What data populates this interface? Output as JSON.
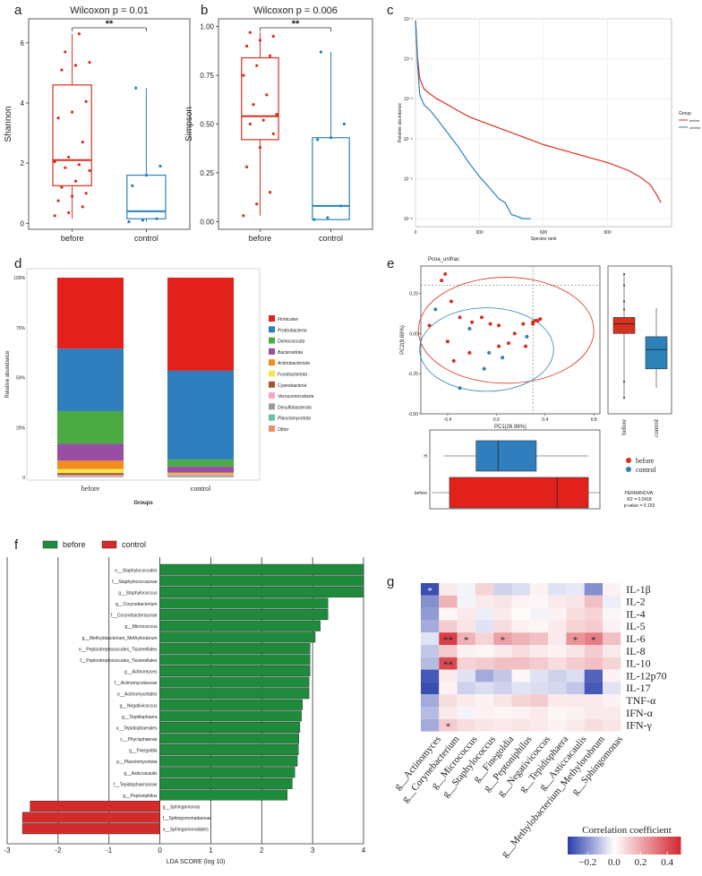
{
  "panel_letters": [
    "a",
    "b",
    "c",
    "d",
    "e",
    "f",
    "g"
  ],
  "chart_data": [
    {
      "id": "a",
      "type": "box",
      "title": "Wilcoxon   p = 0.01",
      "sig": "**",
      "ylabel": "Shannon",
      "ylim": [
        -0.2,
        6.8
      ],
      "yticks": [
        0,
        2,
        4,
        6
      ],
      "categories": [
        "before",
        "control"
      ],
      "colors": [
        "#d7301f",
        "#2b83ba"
      ],
      "boxes": [
        {
          "min": 0.15,
          "q1": 1.25,
          "median": 2.1,
          "q3": 4.6,
          "max": 6.3
        },
        {
          "min": 0.05,
          "q1": 0.15,
          "median": 0.4,
          "q3": 1.6,
          "max": 4.5
        }
      ],
      "points": [
        [
          0.25,
          0.35,
          0.55,
          0.75,
          0.9,
          1.0,
          1.2,
          1.4,
          1.75,
          1.85,
          1.95,
          2.05,
          2.2,
          2.7,
          3.5,
          3.7,
          4.05,
          5.1,
          5.25,
          5.35,
          5.7,
          6.3
        ],
        [
          0.05,
          0.1,
          0.15,
          1.25,
          1.6,
          1.9,
          4.5
        ]
      ]
    },
    {
      "id": "b",
      "type": "box",
      "title": "Wilcoxon   p = 0.006",
      "sig": "**",
      "ylabel": "Simpson",
      "ylim": [
        -0.04,
        1.04
      ],
      "yticks": [
        0.0,
        0.25,
        0.5,
        0.75,
        1.0
      ],
      "yticklabels": [
        "0.00",
        "0.25",
        "0.50",
        "0.75",
        "1.00"
      ],
      "categories": [
        "before",
        "control"
      ],
      "colors": [
        "#d7301f",
        "#2b83ba"
      ],
      "boxes": [
        {
          "min": 0.03,
          "q1": 0.42,
          "median": 0.54,
          "q3": 0.84,
          "max": 0.97
        },
        {
          "min": 0.01,
          "q1": 0.01,
          "median": 0.08,
          "q3": 0.43,
          "max": 0.87
        }
      ],
      "points": [
        [
          0.03,
          0.09,
          0.15,
          0.28,
          0.38,
          0.45,
          0.5,
          0.52,
          0.55,
          0.6,
          0.65,
          0.75,
          0.8,
          0.85,
          0.9,
          0.93,
          0.95,
          0.97
        ],
        [
          0.01,
          0.02,
          0.08,
          0.42,
          0.43,
          0.5,
          0.87
        ]
      ]
    },
    {
      "id": "c",
      "type": "line",
      "ylabel": "Relative abundance",
      "xlabel": "Species rank",
      "xlim": [
        0,
        1200
      ],
      "ylim": [
        -6.2,
        -1
      ],
      "xticks": [
        0,
        300,
        600,
        900
      ],
      "yticks": [
        -6,
        -5,
        -4,
        -3,
        -2,
        -1
      ],
      "yticklabels": [
        "10⁻⁶",
        "10⁻⁵",
        "10⁻⁴",
        "10⁻³",
        "10⁻²",
        "10⁻¹"
      ],
      "legend_title": "Group",
      "series": [
        {
          "name": "before",
          "color": "#d7301f",
          "x": [
            1,
            5,
            10,
            20,
            40,
            60,
            100,
            150,
            200,
            250,
            300,
            400,
            500,
            600,
            700,
            800,
            900,
            1000,
            1050,
            1100,
            1130,
            1150
          ],
          "y": [
            -1.05,
            -1.5,
            -2.0,
            -2.5,
            -2.75,
            -2.85,
            -3.0,
            -3.15,
            -3.3,
            -3.45,
            -3.55,
            -3.75,
            -3.95,
            -4.15,
            -4.3,
            -4.45,
            -4.6,
            -4.8,
            -4.95,
            -5.15,
            -5.4,
            -5.6
          ]
        },
        {
          "name": "control",
          "color": "#2b83ba",
          "x": [
            1,
            5,
            10,
            20,
            40,
            70,
            100,
            150,
            200,
            250,
            300,
            350,
            390,
            420,
            440,
            450,
            480,
            500,
            540
          ],
          "y": [
            -1.05,
            -1.6,
            -2.2,
            -2.9,
            -3.15,
            -3.3,
            -3.5,
            -3.85,
            -4.2,
            -4.6,
            -4.95,
            -5.25,
            -5.5,
            -5.6,
            -5.8,
            -5.9,
            -5.95,
            -6.0,
            -6.0
          ]
        }
      ]
    },
    {
      "id": "d",
      "type": "bar",
      "stacked": true,
      "ylabel": "Relative abundance",
      "xlabel": "Groups",
      "categories": [
        "before",
        "control"
      ],
      "yticks": [
        0,
        25,
        50,
        75,
        100
      ],
      "yticklabels": [
        "0",
        "25%",
        "50%",
        "75%",
        "100%"
      ],
      "series": [
        {
          "name": "Firmicutes",
          "color": "#e3211c",
          "values": [
            35.5,
            46.6
          ]
        },
        {
          "name": "Proteobacteria",
          "color": "#2f7ebd",
          "values": [
            31.3,
            44.4
          ]
        },
        {
          "name": "Deinococcota",
          "color": "#4aab45",
          "values": [
            16.4,
            3.5
          ]
        },
        {
          "name": "Bacteroidota",
          "color": "#984ea3",
          "values": [
            8.4,
            3.0
          ]
        },
        {
          "name": "Actinobacteriota",
          "color": "#f28c1e",
          "values": [
            4.2,
            0.5
          ]
        },
        {
          "name": "Fusobacteriota",
          "color": "#f5e74b",
          "values": [
            2.0,
            0.3
          ]
        },
        {
          "name": "Cyanobacteria",
          "color": "#a65628",
          "values": [
            1.0,
            0.2
          ]
        },
        {
          "name": "Verrucomicrobiota",
          "color": "#f4a6cb",
          "values": [
            0.6,
            0.6
          ]
        },
        {
          "name": "Desulfobacterota",
          "color": "#9b9b9b",
          "values": [
            0.3,
            0.4
          ]
        },
        {
          "name": "Planctomycetota",
          "color": "#66c2a5",
          "values": [
            0.2,
            0.3
          ]
        },
        {
          "name": "Other",
          "color": "#f08c6d",
          "values": [
            0.1,
            0.2
          ]
        }
      ]
    },
    {
      "id": "e",
      "type": "scatter",
      "title": "Pcoa_unifrac",
      "xlabel": "PC1(26.98%)",
      "ylabel": "PC2(8.69%)",
      "xlim": [
        -0.62,
        0.85
      ],
      "ylim": [
        -0.5,
        0.42
      ],
      "xticks": [
        -0.4,
        0.0,
        0.4,
        0.8
      ],
      "xticklabels": [
        "-0.4",
        "0.0",
        "0.4",
        "0.8"
      ],
      "yticks": [
        -0.5,
        -0.25,
        0.0,
        0.25
      ],
      "yticklabels": [
        "-0.50",
        "-0.25",
        "0.00",
        "0.25"
      ],
      "series": [
        {
          "name": "before",
          "color": "#d7301f",
          "points": [
            [
              -0.42,
              0.37
            ],
            [
              -0.45,
              0.33
            ],
            [
              -0.37,
              0.2
            ],
            [
              -0.55,
              0.05
            ],
            [
              -0.3,
              0.1
            ],
            [
              -0.2,
              0.07
            ],
            [
              -0.12,
              0.1
            ],
            [
              -0.05,
              0.06
            ],
            [
              0.02,
              0.05
            ],
            [
              0.15,
              0.0
            ],
            [
              0.22,
              0.06
            ],
            [
              0.3,
              0.07
            ],
            [
              0.32,
              0.08
            ],
            [
              0.34,
              0.08
            ],
            [
              0.36,
              0.09
            ],
            [
              0.1,
              -0.06
            ],
            [
              -0.4,
              -0.05
            ],
            [
              -0.22,
              -0.12
            ],
            [
              -0.35,
              -0.17
            ],
            [
              0.02,
              -0.08
            ],
            [
              0.24,
              -0.08
            ],
            [
              0.3,
              0.06
            ]
          ]
        },
        {
          "name": "control",
          "color": "#2b83ba",
          "points": [
            [
              -0.5,
              0.15
            ],
            [
              -0.22,
              0.03
            ],
            [
              -0.06,
              -0.12
            ],
            [
              0.05,
              -0.15
            ],
            [
              -0.1,
              -0.22
            ],
            [
              -0.3,
              -0.34
            ],
            [
              0.25,
              -0.02
            ]
          ]
        }
      ],
      "legend": [
        "before",
        "control"
      ],
      "permanova": [
        "PERMANOVA:",
        "R2 = 0.0418",
        "p-value = 0.153"
      ],
      "box_right": {
        "categories": [
          "before",
          "control"
        ],
        "boxes": [
          {
            "min": -0.4,
            "q1": 0.0,
            "median": 0.06,
            "q3": 0.1,
            "max": 0.37
          },
          {
            "min": -0.34,
            "q1": -0.22,
            "median": -0.1,
            "q3": -0.02,
            "max": 0.16
          }
        ],
        "outliers": [
          [
            0.37,
            0.3,
            -0.3,
            -0.4,
            0.2,
            0.15
          ],
          []
        ]
      },
      "box_bottom": {
        "categories": [
          "H",
          "before"
        ],
        "boxes": [
          {
            "min": -0.5,
            "q1": -0.22,
            "median": -0.03,
            "q3": 0.3,
            "max": 0.75
          },
          {
            "min": -0.6,
            "q1": -0.45,
            "median": 0.48,
            "q3": 0.75,
            "max": 0.85
          }
        ]
      }
    },
    {
      "id": "f",
      "type": "bar",
      "orientation": "horizontal",
      "xlabel": "LDA SCORE (log 10)",
      "xlim": [
        -3,
        4
      ],
      "xticks": [
        -3,
        -2,
        -1,
        0,
        1,
        2,
        3,
        4
      ],
      "legend": [
        {
          "name": "before",
          "color": "#1e8a3c"
        },
        {
          "name": "control",
          "color": "#d42a2a"
        }
      ],
      "categories": [
        "o__Staphylococcales",
        "f__Staphylococcaceae",
        "g__Staphylococcus",
        "g__Corynebacterium",
        "f__Corynebacteriaceae",
        "g__Micrococcus",
        "g__Methylobacterium_Methylorubrum",
        "o__Peptostreptococcales_Tissierellales",
        "f__Peptostreptococcales_Tissierellales",
        "g__Actinomyces",
        "f__Actinomycetaceae",
        "o__Actinomycetales",
        "g__Negativicoccus",
        "g__Tepidisphaera",
        "o__Tepidisphaerales",
        "c__Phycisphaerae",
        "g__Finegoldia",
        "p__Planctomycetota",
        "g__Asticcacaulis",
        "f__Tepidisphaeraceae",
        "g__Peptoniphilus",
        "g__Sphingomonas",
        "f__Sphingomonadaceae",
        "o__Sphingomonadales"
      ],
      "values": [
        4.0,
        4.0,
        4.0,
        3.3,
        3.3,
        3.15,
        3.05,
        2.95,
        2.95,
        2.95,
        2.93,
        2.93,
        2.8,
        2.78,
        2.75,
        2.73,
        2.72,
        2.7,
        2.65,
        2.6,
        2.5,
        -2.55,
        -2.7,
        -2.7
      ],
      "groups": [
        "before",
        "before",
        "before",
        "before",
        "before",
        "before",
        "before",
        "before",
        "before",
        "before",
        "before",
        "before",
        "before",
        "before",
        "before",
        "before",
        "before",
        "before",
        "before",
        "before",
        "before",
        "control",
        "control",
        "control"
      ]
    },
    {
      "id": "g",
      "type": "heatmap",
      "rows": [
        "IL-1β",
        "IL-2",
        "IL-4",
        "IL-5",
        "IL-6",
        "IL-8",
        "IL-10",
        "IL-12p70",
        "IL-17",
        "TNF-α",
        "IFN-α",
        "IFN-γ"
      ],
      "cols": [
        "g__Actinomyces",
        "g__Corynebacterium",
        "g__Micrococcus",
        "g__Staphylococcus",
        "g__Finegoldia",
        "g__Peptoniphilus",
        "g__Negativicoccus",
        "g__Tepidisphaera",
        "g__Asticcacaulis",
        "g__Methylobacterium_Methylorubrum",
        "g__Sphingomonas"
      ],
      "values": [
        [
          -0.32,
          0.05,
          -0.02,
          0.1,
          -0.08,
          -0.06,
          0.03,
          -0.05,
          -0.04,
          -0.2,
          0.03
        ],
        [
          -0.2,
          0.18,
          -0.02,
          0.05,
          0.06,
          0.03,
          0.02,
          0.05,
          0.06,
          0.15,
          -0.03
        ],
        [
          -0.18,
          0.02,
          0.05,
          -0.03,
          0.05,
          0.01,
          -0.02,
          0.03,
          0.08,
          0.1,
          0.02
        ],
        [
          -0.15,
          0.12,
          0.06,
          -0.05,
          0.08,
          0.03,
          0.02,
          0.05,
          0.1,
          0.12,
          0.03
        ],
        [
          -0.05,
          0.45,
          0.18,
          0.1,
          0.22,
          0.18,
          0.15,
          0.05,
          0.25,
          0.3,
          0.15
        ],
        [
          -0.1,
          0.12,
          0.03,
          0.02,
          0.05,
          0.08,
          0.05,
          0.03,
          0.06,
          0.12,
          0.05
        ],
        [
          -0.12,
          0.42,
          0.1,
          0.12,
          0.15,
          0.15,
          0.12,
          0.08,
          0.12,
          0.15,
          0.1
        ],
        [
          -0.3,
          0.05,
          -0.05,
          -0.15,
          -0.1,
          0.02,
          -0.05,
          -0.08,
          -0.06,
          -0.28,
          0.03
        ],
        [
          -0.32,
          0.03,
          -0.08,
          -0.06,
          -0.08,
          -0.05,
          -0.06,
          -0.07,
          -0.1,
          -0.3,
          -0.05
        ],
        [
          -0.15,
          0.08,
          0.05,
          0.03,
          0.06,
          0.1,
          0.12,
          0.05,
          0.05,
          0.05,
          0.03
        ],
        [
          -0.12,
          0.05,
          -0.02,
          0.03,
          0.02,
          0.03,
          0.05,
          0.02,
          0.03,
          0.05,
          0.05
        ],
        [
          -0.15,
          0.12,
          0.08,
          0.06,
          0.05,
          0.06,
          0.05,
          0.03,
          0.05,
          0.08,
          0.06
        ]
      ],
      "stars": [
        [
          0,
          0,
          "*"
        ],
        [
          4,
          1,
          "**"
        ],
        [
          4,
          2,
          "*"
        ],
        [
          4,
          4,
          "*"
        ],
        [
          4,
          8,
          "*"
        ],
        [
          4,
          9,
          "*"
        ],
        [
          6,
          1,
          "**"
        ],
        [
          11,
          1,
          "*"
        ]
      ],
      "legend_title": "Correlation coefficient",
      "legend_ticks": [
        -0.2,
        0.0,
        0.2,
        0.4
      ],
      "legend_ticklabels": [
        "−0.2",
        "0.0",
        "0.2",
        "0.4"
      ],
      "color_range": [
        -0.35,
        0.5
      ]
    }
  ]
}
